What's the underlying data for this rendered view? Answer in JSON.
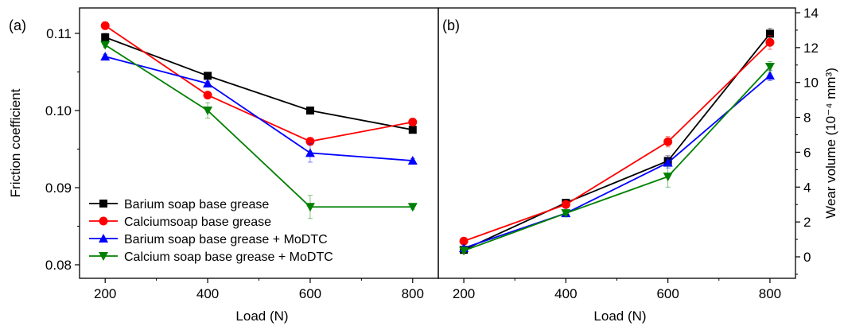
{
  "chart_data": [
    {
      "panel_label": "(a)",
      "type": "line",
      "xlabel": "Load (N)",
      "ylabel": "Friction coefficient",
      "x": [
        200,
        400,
        600,
        800
      ],
      "xlim": [
        150,
        850
      ],
      "xticks": [
        "200",
        "400",
        "600",
        "800"
      ],
      "ylim": [
        0.074,
        0.113
      ],
      "yticks": [
        "0.08",
        "0.09",
        "0.10",
        "0.11"
      ],
      "legend_position": "bottom-left",
      "series": [
        {
          "name": "Barium soap base grease",
          "color": "#000000",
          "marker": "square",
          "values": [
            0.1095,
            0.1045,
            0.1,
            0.0975
          ],
          "errors": [
            0.0005,
            0.0003,
            0.0002,
            0.0003
          ]
        },
        {
          "name": "Calciumsoap base grease",
          "color": "#ff0000",
          "marker": "circle",
          "values": [
            0.111,
            0.102,
            0.096,
            0.0985
          ],
          "errors": [
            0.0003,
            0.0004,
            0.0005,
            0.0003
          ]
        },
        {
          "name": "Barium soap base grease + MoDTC",
          "color": "#0000ff",
          "marker": "triangle-up",
          "values": [
            0.107,
            0.1035,
            0.0945,
            0.0935
          ],
          "errors": [
            0.0003,
            0.0003,
            0.0012,
            0.0003
          ]
        },
        {
          "name": "Calcium soap base grease + MoDTC",
          "color": "#008000",
          "marker": "triangle-down",
          "values": [
            0.1085,
            0.1,
            0.0875,
            0.0875
          ],
          "errors": [
            0.0003,
            0.001,
            0.0015,
            0.0003
          ]
        }
      ]
    },
    {
      "panel_label": "(b)",
      "type": "line",
      "xlabel": "Load (N)",
      "ylabel": "Wear volume (10⁻⁴ mm³)",
      "x": [
        200,
        400,
        600,
        800
      ],
      "xlim": [
        150,
        850
      ],
      "xticks": [
        "200",
        "400",
        "600",
        "800"
      ],
      "ylim": [
        -1,
        14
      ],
      "yticks": [
        "0",
        "2",
        "4",
        "6",
        "8",
        "10",
        "12",
        "14"
      ],
      "series": [
        {
          "name": "Barium soap base grease",
          "color": "#000000",
          "marker": "square",
          "values": [
            0.4,
            3.1,
            5.5,
            12.8
          ],
          "errors": [
            0.1,
            0.15,
            0.3,
            0.3
          ]
        },
        {
          "name": "Calciumsoap base grease",
          "color": "#ff0000",
          "marker": "circle",
          "values": [
            0.9,
            3.0,
            6.6,
            12.3
          ],
          "errors": [
            0.1,
            0.2,
            0.3,
            0.4
          ]
        },
        {
          "name": "Barium soap base grease + MoDTC",
          "color": "#0000ff",
          "marker": "triangle-up",
          "values": [
            0.5,
            2.5,
            5.4,
            10.4
          ],
          "errors": [
            0.1,
            0.15,
            0.3,
            0.3
          ]
        },
        {
          "name": "Calcium soap base grease + MoDTC",
          "color": "#008000",
          "marker": "triangle-down",
          "values": [
            0.35,
            2.5,
            4.6,
            10.9
          ],
          "errors": [
            0.1,
            0.15,
            0.6,
            0.3
          ]
        }
      ]
    }
  ]
}
